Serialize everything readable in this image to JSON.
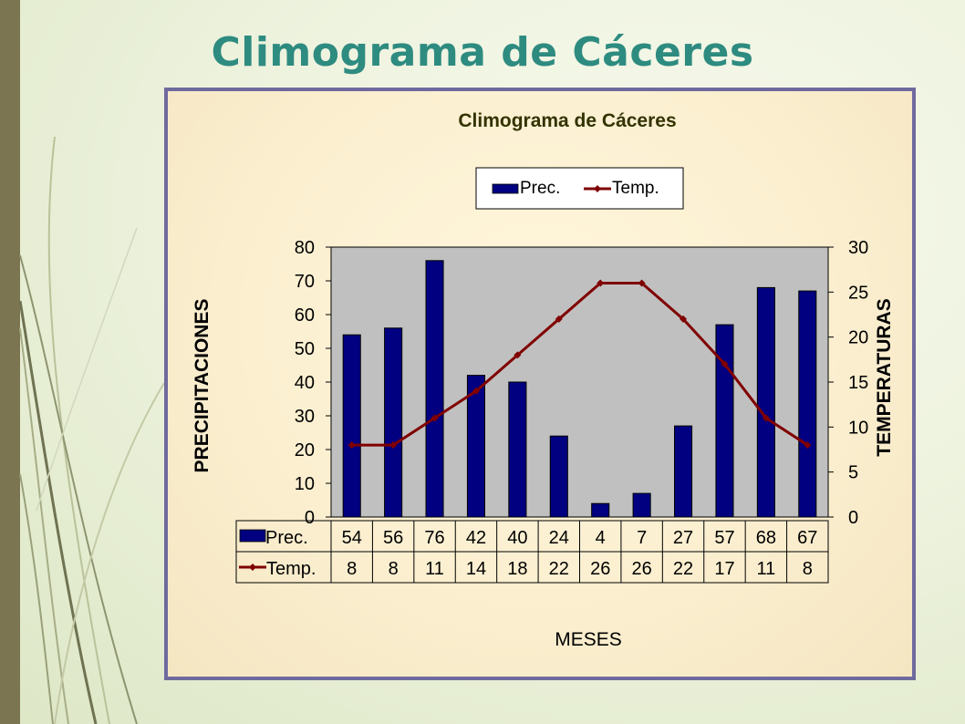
{
  "slide": {
    "title": "Climograma de Cáceres"
  },
  "chart_data": {
    "type": "bar",
    "title": "Climograma de Cáceres",
    "xlabel": "MESES",
    "ylabel": "PRECIPITACIONES",
    "y2label": "TEMPERATURAS",
    "ylim": [
      0,
      80
    ],
    "y2lim": [
      0,
      30
    ],
    "yticks": [
      0,
      10,
      20,
      30,
      40,
      50,
      60,
      70,
      80
    ],
    "y2ticks": [
      0,
      5,
      10,
      15,
      20,
      25,
      30
    ],
    "legend_position": "top-center",
    "series": [
      {
        "name": "Prec.",
        "type": "bar",
        "axis": "left",
        "color": "#000080",
        "values": [
          54,
          56,
          76,
          42,
          40,
          24,
          4,
          7,
          27,
          57,
          68,
          67
        ]
      },
      {
        "name": "Temp.",
        "type": "line",
        "axis": "right",
        "color": "#800000",
        "values": [
          8,
          8,
          11,
          14,
          18,
          22,
          26,
          26,
          22,
          17,
          11,
          8
        ]
      }
    ],
    "plot_background": "#c0c0c0",
    "data_table": true
  }
}
